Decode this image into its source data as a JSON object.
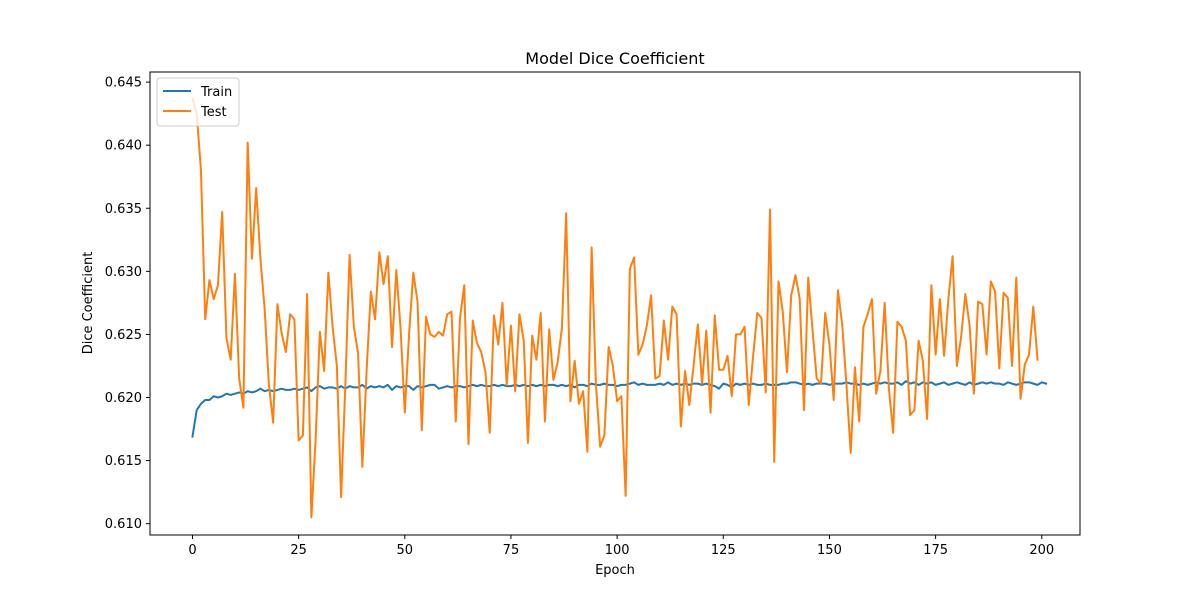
{
  "chart_data": {
    "type": "line",
    "title": "Model Dice Coefficient",
    "xlabel": "Epoch",
    "ylabel": "Dice Coefficient",
    "xlim": [
      -10,
      209
    ],
    "ylim": [
      0.6091,
      0.6458
    ],
    "xticks": [
      0,
      25,
      50,
      75,
      100,
      125,
      150,
      175,
      200
    ],
    "yticks": [
      0.61,
      0.615,
      0.62,
      0.625,
      0.63,
      0.635,
      0.64,
      0.645
    ],
    "ytick_labels": [
      "0.610",
      "0.615",
      "0.620",
      "0.625",
      "0.630",
      "0.635",
      "0.640",
      "0.645"
    ],
    "legend_position": "upper-left",
    "grid": false,
    "series": [
      {
        "name": "Train",
        "color": "#1f77b4",
        "values": [
          0.6169,
          0.619,
          0.6195,
          0.6198,
          0.6198,
          0.6201,
          0.62,
          0.6201,
          0.6203,
          0.6202,
          0.6203,
          0.6204,
          0.6203,
          0.6205,
          0.6204,
          0.6205,
          0.6207,
          0.6205,
          0.6206,
          0.6205,
          0.6206,
          0.6207,
          0.6206,
          0.6206,
          0.6207,
          0.6206,
          0.6207,
          0.6208,
          0.6205,
          0.6208,
          0.6209,
          0.6207,
          0.6208,
          0.6208,
          0.6207,
          0.6209,
          0.6207,
          0.6209,
          0.6208,
          0.6208,
          0.621,
          0.6207,
          0.6209,
          0.6208,
          0.6209,
          0.6208,
          0.621,
          0.6206,
          0.6209,
          0.6208,
          0.6209,
          0.6209,
          0.6206,
          0.6209,
          0.6208,
          0.6209,
          0.621,
          0.621,
          0.6207,
          0.6208,
          0.6209,
          0.6208,
          0.6209,
          0.6209,
          0.6208,
          0.6209,
          0.621,
          0.6209,
          0.621,
          0.6209,
          0.6209,
          0.621,
          0.6209,
          0.621,
          0.6209,
          0.6209,
          0.621,
          0.6209,
          0.621,
          0.6209,
          0.621,
          0.6209,
          0.621,
          0.6209,
          0.621,
          0.621,
          0.6209,
          0.621,
          0.6209,
          0.621,
          0.6208,
          0.621,
          0.621,
          0.6209,
          0.6211,
          0.621,
          0.621,
          0.6211,
          0.621,
          0.621,
          0.6209,
          0.621,
          0.621,
          0.6211,
          0.6212,
          0.621,
          0.6211,
          0.621,
          0.621,
          0.621,
          0.6211,
          0.621,
          0.6212,
          0.621,
          0.6211,
          0.621,
          0.6211,
          0.621,
          0.6211,
          0.6211,
          0.621,
          0.6211,
          0.621,
          0.6209,
          0.6207,
          0.6211,
          0.621,
          0.6208,
          0.6211,
          0.621,
          0.6211,
          0.621,
          0.6211,
          0.621,
          0.621,
          0.6211,
          0.621,
          0.621,
          0.621,
          0.6211,
          0.6211,
          0.6212,
          0.6212,
          0.6211,
          0.621,
          0.6211,
          0.621,
          0.6211,
          0.6211,
          0.6211,
          0.621,
          0.6211,
          0.6211,
          0.6211,
          0.6212,
          0.6211,
          0.6211,
          0.621,
          0.6211,
          0.621,
          0.6211,
          0.6212,
          0.6211,
          0.6212,
          0.6211,
          0.6211,
          0.6212,
          0.621,
          0.6213,
          0.6211,
          0.6212,
          0.621,
          0.6212,
          0.6211,
          0.6212,
          0.621,
          0.6211,
          0.6212,
          0.621,
          0.6211,
          0.6212,
          0.6211,
          0.621,
          0.6212,
          0.621,
          0.6211,
          0.6212,
          0.6211,
          0.6212,
          0.6211,
          0.6211,
          0.621,
          0.6212,
          0.6211,
          0.621,
          0.6211,
          0.6212,
          0.6212,
          0.6211,
          0.621,
          0.6212,
          0.6211
        ]
      },
      {
        "name": "Test",
        "color": "#ff7f0e",
        "values": [
          0.6437,
          0.6425,
          0.638,
          0.6262,
          0.6293,
          0.6278,
          0.6289,
          0.6347,
          0.6247,
          0.623,
          0.6298,
          0.6215,
          0.6192,
          0.6402,
          0.631,
          0.6366,
          0.631,
          0.627,
          0.621,
          0.618,
          0.6274,
          0.6251,
          0.6236,
          0.6266,
          0.6262,
          0.6166,
          0.617,
          0.6282,
          0.6105,
          0.6167,
          0.6252,
          0.6221,
          0.6299,
          0.6256,
          0.6225,
          0.6121,
          0.621,
          0.6313,
          0.6256,
          0.6235,
          0.6145,
          0.6221,
          0.6284,
          0.6262,
          0.6315,
          0.629,
          0.6312,
          0.624,
          0.6301,
          0.6255,
          0.6188,
          0.625,
          0.6299,
          0.6276,
          0.6174,
          0.6264,
          0.625,
          0.6248,
          0.6252,
          0.6249,
          0.6266,
          0.6268,
          0.6181,
          0.6263,
          0.6289,
          0.6163,
          0.6261,
          0.6243,
          0.6236,
          0.622,
          0.6172,
          0.6265,
          0.6242,
          0.6275,
          0.621,
          0.6257,
          0.6205,
          0.6266,
          0.6245,
          0.6164,
          0.6249,
          0.623,
          0.6267,
          0.6181,
          0.6254,
          0.6214,
          0.6228,
          0.6255,
          0.6346,
          0.6197,
          0.6229,
          0.6195,
          0.6205,
          0.6157,
          0.6319,
          0.6211,
          0.6161,
          0.617,
          0.624,
          0.6225,
          0.6197,
          0.6201,
          0.6122,
          0.6302,
          0.6311,
          0.6234,
          0.6242,
          0.6257,
          0.6281,
          0.6215,
          0.6217,
          0.6261,
          0.623,
          0.6272,
          0.6266,
          0.6177,
          0.6221,
          0.6194,
          0.6225,
          0.6258,
          0.6211,
          0.6253,
          0.6188,
          0.6265,
          0.6222,
          0.6222,
          0.6233,
          0.6201,
          0.625,
          0.625,
          0.6256,
          0.6194,
          0.6232,
          0.6267,
          0.6263,
          0.6204,
          0.6349,
          0.6149,
          0.6292,
          0.6268,
          0.622,
          0.6281,
          0.6297,
          0.6278,
          0.619,
          0.6295,
          0.6254,
          0.6215,
          0.6211,
          0.6267,
          0.6242,
          0.6198,
          0.6285,
          0.6258,
          0.621,
          0.6156,
          0.6224,
          0.6181,
          0.6256,
          0.6266,
          0.6278,
          0.6203,
          0.6221,
          0.6275,
          0.6207,
          0.6172,
          0.626,
          0.6256,
          0.6245,
          0.6186,
          0.619,
          0.6245,
          0.6229,
          0.6183,
          0.6289,
          0.6234,
          0.6278,
          0.6233,
          0.6278,
          0.6312,
          0.6225,
          0.6248,
          0.6282,
          0.6257,
          0.6203,
          0.6276,
          0.6274,
          0.6234,
          0.6292,
          0.6284,
          0.6223,
          0.6283,
          0.6279,
          0.6225,
          0.6295,
          0.6199,
          0.6226,
          0.6234,
          0.6272,
          0.623
        ]
      }
    ]
  }
}
